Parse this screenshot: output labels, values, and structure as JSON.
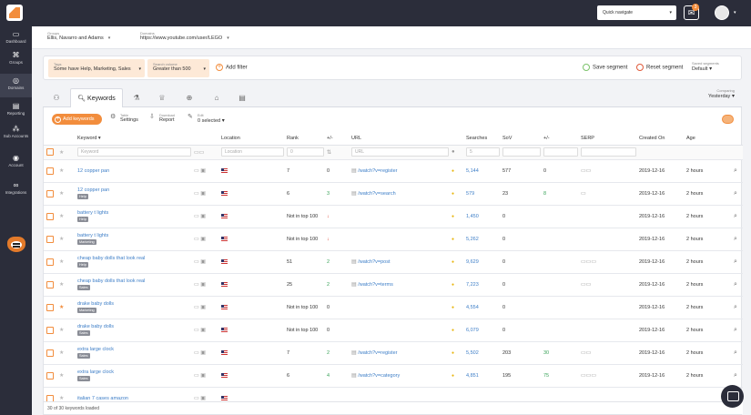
{
  "topbar": {
    "quick_navigate": "Quick navigate",
    "notification_count": "3"
  },
  "sidebar": {
    "items": [
      {
        "label": "Dashboard",
        "icon": "monitor-icon"
      },
      {
        "label": "Groups",
        "icon": "hierarchy-icon"
      },
      {
        "label": "Domains",
        "icon": "globe-icon"
      },
      {
        "label": "Reporting",
        "icon": "document-icon"
      },
      {
        "label": "Sub Accounts",
        "icon": "network-icon"
      },
      {
        "label": "Account",
        "icon": "pin-icon"
      },
      {
        "label": "Integrations",
        "icon": "link-icon"
      }
    ]
  },
  "filterbar": {
    "groups_label": "Groups",
    "groups_value": "Ellis, Navarro and Adams",
    "domains_label": "Domains",
    "domains_value": "https://www.youtube.com/user/LEGO"
  },
  "segment": {
    "tags_label": "Tags",
    "tags_value": "Some have Help, Marketing, Sales",
    "volume_label": "Search volume",
    "volume_value": "Greater than 500",
    "add_filter": "Add filter",
    "save": "Save segment",
    "reset": "Reset segment",
    "saved_label": "Saved segments",
    "saved_value": "Default"
  },
  "tabs": {
    "active": "Keywords",
    "compare_label": "Comparing",
    "compare_value": "Yesterday"
  },
  "toolbar": {
    "add_keywords": "Add keywords",
    "table_label": "Table",
    "table_value": "Settings",
    "download_label": "Download",
    "download_value": "Report",
    "edit_label": "Edit",
    "edit_value": "0 selected"
  },
  "columns": {
    "keyword": "Keyword ▾",
    "location": "Location",
    "rank": "Rank",
    "rank_change": "+/-",
    "url": "URL",
    "searches": "Searches",
    "sov": "SoV",
    "sov_change": "+/-",
    "serp": "SERP",
    "created": "Created On",
    "age": "Age"
  },
  "filters": {
    "keyword_placeholder": "Keyword",
    "location_placeholder": "Location",
    "url_placeholder": "URL",
    "rank_min": "0",
    "searches_gt": "5"
  },
  "rows": [
    {
      "keyword": "12 copper pan",
      "tag": "",
      "rank": "7",
      "rank_change": "0",
      "rc_dir": "",
      "url": "/watch?v=register",
      "searches": "5,144",
      "sov": "577",
      "sov_change": "0",
      "sc_dir": "",
      "created": "2019-12-16",
      "age": "2 hours",
      "starred": false,
      "serp": "▭▭"
    },
    {
      "keyword": "12 copper pan",
      "tag": "Help",
      "rank": "6",
      "rank_change": "3",
      "rc_dir": "up",
      "url": "/watch?v=search",
      "searches": "579",
      "sov": "23",
      "sov_change": "8",
      "sc_dir": "up",
      "created": "2019-12-16",
      "age": "2 hours",
      "starred": false,
      "serp": "▭"
    },
    {
      "keyword": "battery t lights",
      "tag": "Help",
      "rank": "Not in top 100",
      "rank_change": "↓",
      "rc_dir": "down",
      "url": "",
      "searches": "1,450",
      "sov": "0",
      "sov_change": "",
      "sc_dir": "",
      "created": "2019-12-16",
      "age": "2 hours",
      "starred": false,
      "serp": ""
    },
    {
      "keyword": "battery t lights",
      "tag": "Marketing",
      "rank": "Not in top 100",
      "rank_change": "↓",
      "rc_dir": "down",
      "url": "",
      "searches": "5,262",
      "sov": "0",
      "sov_change": "",
      "sc_dir": "",
      "created": "2019-12-16",
      "age": "2 hours",
      "starred": false,
      "serp": ""
    },
    {
      "keyword": "cheap baby dolls that look real",
      "tag": "Help",
      "rank": "51",
      "rank_change": "2",
      "rc_dir": "up",
      "url": "/watch?v=post",
      "searches": "9,629",
      "sov": "0",
      "sov_change": "",
      "sc_dir": "",
      "created": "2019-12-16",
      "age": "2 hours",
      "starred": false,
      "serp": "▭▭▭"
    },
    {
      "keyword": "cheap baby dolls that look real",
      "tag": "Sales",
      "rank": "25",
      "rank_change": "2",
      "rc_dir": "up",
      "url": "/watch?v=terms",
      "searches": "7,223",
      "sov": "0",
      "sov_change": "",
      "sc_dir": "",
      "created": "2019-12-16",
      "age": "2 hours",
      "starred": false,
      "serp": "▭▭"
    },
    {
      "keyword": "drake baby dolls",
      "tag": "Marketing",
      "rank": "Not in top 100",
      "rank_change": "0",
      "rc_dir": "",
      "url": "",
      "searches": "4,554",
      "sov": "0",
      "sov_change": "",
      "sc_dir": "",
      "created": "2019-12-16",
      "age": "2 hours",
      "starred": true,
      "serp": ""
    },
    {
      "keyword": "drake baby dolls",
      "tag": "Sales",
      "rank": "Not in top 100",
      "rank_change": "0",
      "rc_dir": "",
      "url": "",
      "searches": "6,079",
      "sov": "0",
      "sov_change": "",
      "sc_dir": "",
      "created": "2019-12-16",
      "age": "2 hours",
      "starred": false,
      "serp": ""
    },
    {
      "keyword": "extra large clock",
      "tag": "Sales",
      "rank": "7",
      "rank_change": "2",
      "rc_dir": "up",
      "url": "/watch?v=register",
      "searches": "5,502",
      "sov": "203",
      "sov_change": "30",
      "sc_dir": "up",
      "created": "2019-12-16",
      "age": "2 hours",
      "starred": false,
      "serp": "▭▭"
    },
    {
      "keyword": "extra large clock",
      "tag": "Sales",
      "rank": "6",
      "rank_change": "4",
      "rc_dir": "up",
      "url": "/watch?v=category",
      "searches": "4,851",
      "sov": "195",
      "sov_change": "75",
      "sc_dir": "up",
      "created": "2019-12-16",
      "age": "2 hours",
      "starred": false,
      "serp": "▭▭▭"
    },
    {
      "keyword": "italian 7 cases amazon",
      "tag": "",
      "rank": "",
      "rank_change": "",
      "rc_dir": "",
      "url": "",
      "searches": "",
      "sov": "",
      "sov_change": "",
      "sc_dir": "",
      "created": "",
      "age": "",
      "starred": false,
      "serp": ""
    }
  ],
  "footer": {
    "status": "30 of 30 keywords loaded"
  }
}
